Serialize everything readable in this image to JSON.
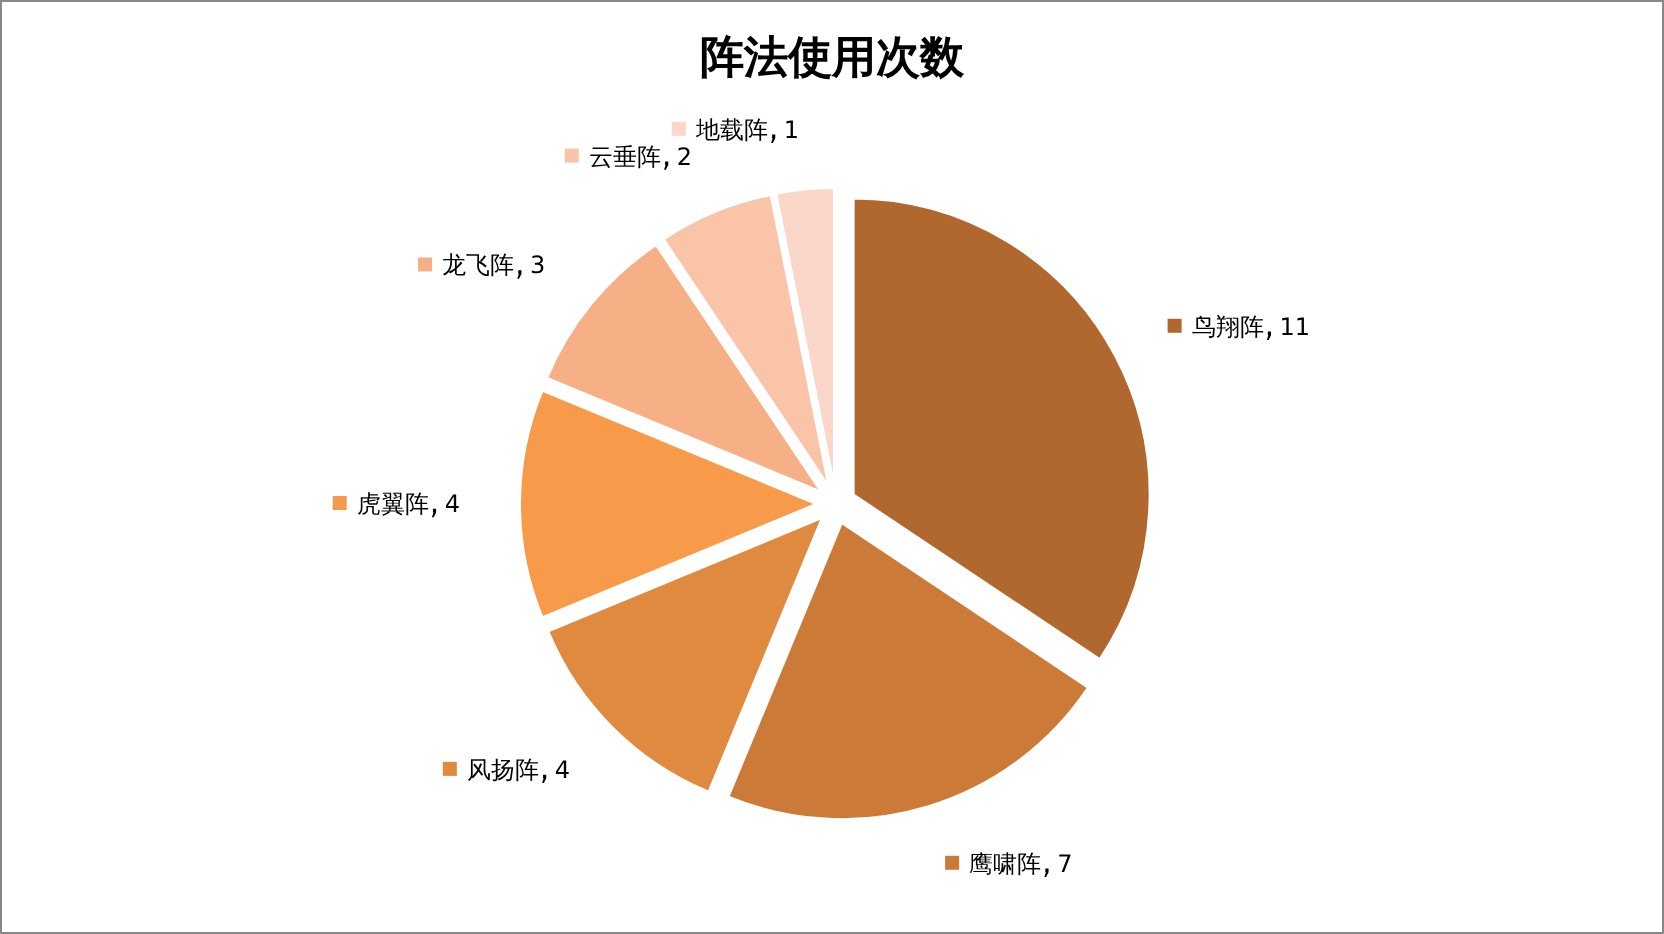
{
  "chart_data": {
    "type": "pie",
    "title": "阵法使用次数",
    "categories": [
      "鸟翔阵",
      "鹰啸阵",
      "风扬阵",
      "虎翼阵",
      "龙飞阵",
      "云垂阵",
      "地载阵"
    ],
    "values": [
      11,
      7,
      4,
      4,
      3,
      2,
      1
    ],
    "colors": [
      "#b0682f",
      "#cc7a38",
      "#e08a40",
      "#f79a4a",
      "#f7b085",
      "#f9c4a8",
      "#fad7c8"
    ],
    "data_labels": true,
    "legend": "top left"
  }
}
